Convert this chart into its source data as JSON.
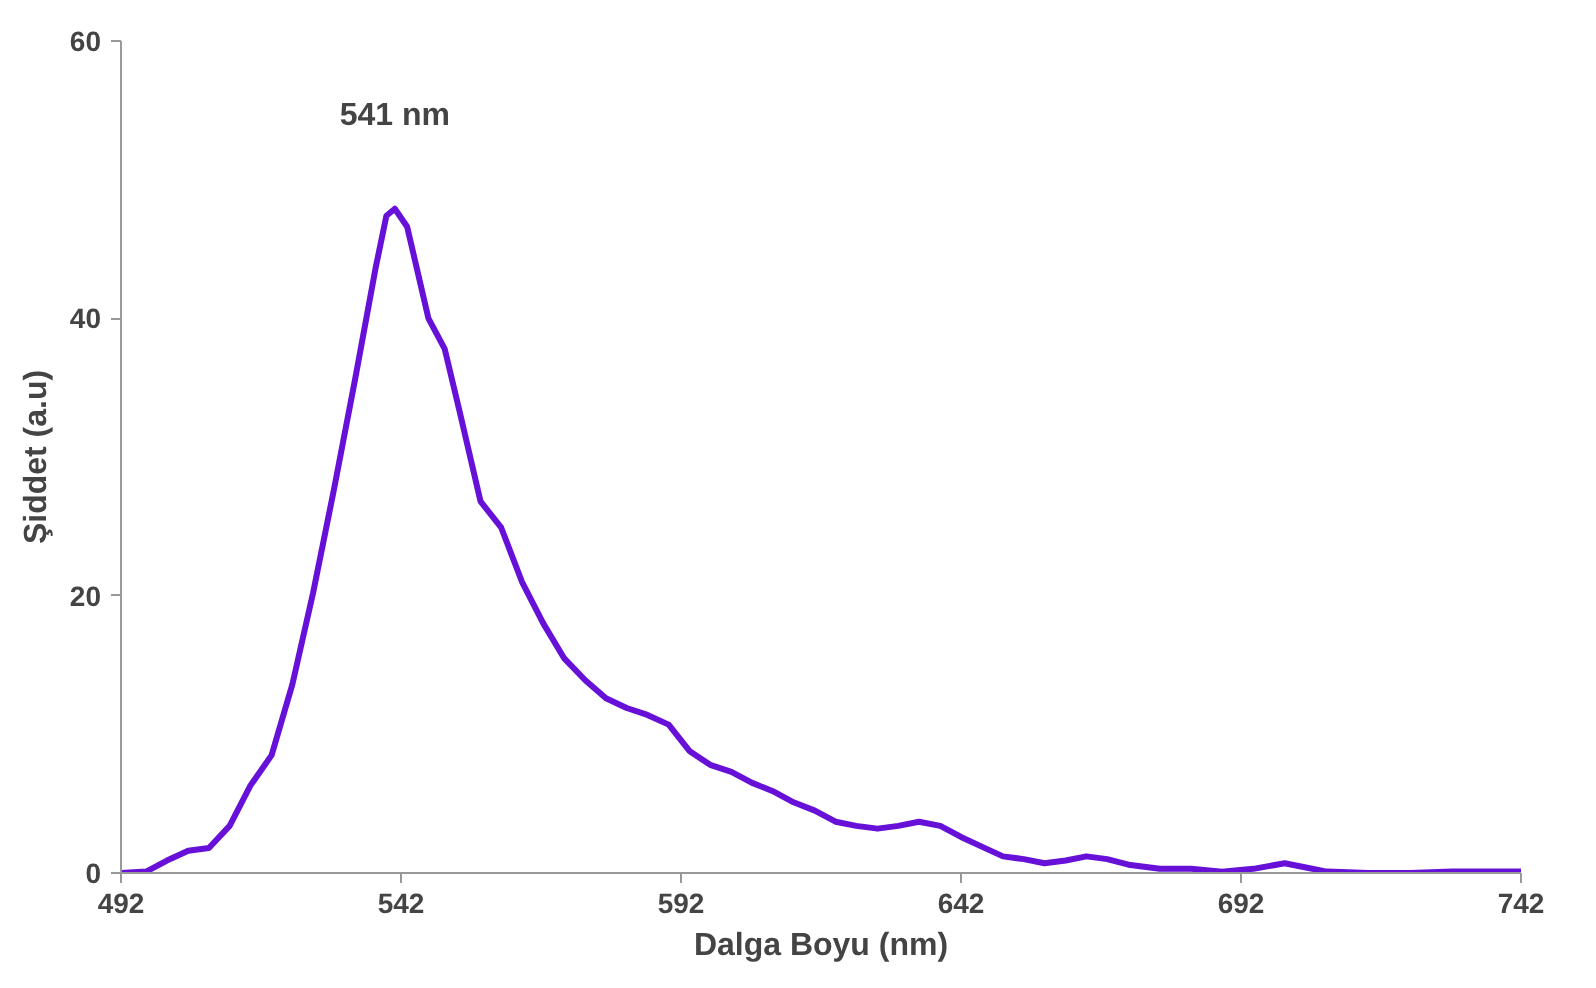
{
  "chart_data": {
    "type": "line",
    "xlabel": "Dalga Boyu (nm)",
    "ylabel": "Şiddet (a.u)",
    "xlim": [
      492,
      742
    ],
    "xticks": [
      492,
      542,
      592,
      642,
      692,
      742
    ],
    "ylim": [
      0,
      60
    ],
    "yticks": [
      0,
      20,
      40,
      60
    ],
    "grid": false,
    "annotations": [
      "541 nm"
    ],
    "series": [
      {
        "color": "#6610d8",
        "x": [
          492,
          496.5,
          500.2,
          504,
          507.7,
          511.4,
          515.1,
          518.9,
          522.6,
          526.3,
          530,
          533.8,
          537.5,
          539.4,
          540.9,
          543.1,
          546.9,
          549.8,
          552.4,
          556.2,
          559.9,
          563.6,
          567.4,
          571.1,
          574.9,
          578.6,
          582.3,
          586,
          589.8,
          593.5,
          597.2,
          601,
          604.7,
          608.4,
          612.1,
          615.9,
          619.6,
          623.3,
          627.1,
          630.8,
          634.5,
          638.3,
          642,
          645.7,
          649.5,
          653.2,
          656.9,
          660.7,
          664.4,
          668.1,
          671.9,
          677.5,
          683.1,
          688.6,
          694.2,
          699.8,
          703.6,
          707.3,
          714.8,
          722.2,
          729.7,
          737.2,
          742
        ],
        "values": [
          0,
          0.1,
          0.9,
          1.6,
          1.8,
          3.4,
          6.3,
          8.5,
          13.6,
          20.2,
          27.6,
          35.6,
          43.7,
          47.4,
          47.9,
          46.6,
          40,
          37.8,
          33.4,
          26.8,
          24.9,
          21,
          18,
          15.5,
          13.9,
          12.6,
          11.9,
          11.4,
          10.7,
          8.8,
          7.8,
          7.3,
          6.5,
          5.9,
          5.1,
          4.5,
          3.7,
          3.4,
          3.2,
          3.4,
          3.7,
          3.4,
          2.6,
          1.9,
          1.2,
          1.0,
          0.7,
          0.9,
          1.2,
          1.0,
          0.6,
          0.3,
          0.3,
          0.1,
          0.3,
          0.7,
          0.4,
          0.1,
          0,
          0,
          0.1,
          0.1,
          0.1
        ]
      }
    ]
  }
}
